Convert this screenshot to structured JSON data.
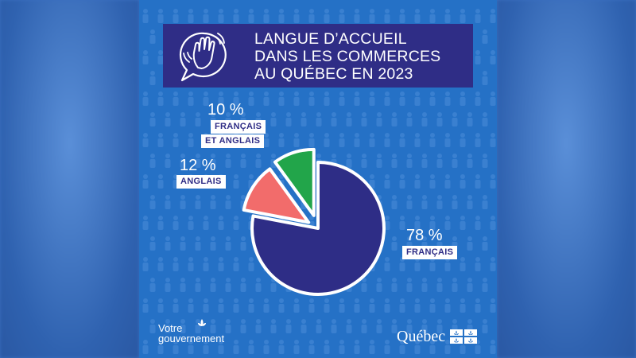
{
  "title_lines": [
    "LANGUE D’ACCUEIL",
    "DANS LES COMMERCES",
    "AU QUÉBEC EN 2023"
  ],
  "icon": "waving-hand-speech-bubble-icon",
  "colors": {
    "background": "#2571c6",
    "header": "#2f2d86",
    "francais": "#2e2d86",
    "anglais": "#f26c6b",
    "francais_et_anglais": "#22a54a"
  },
  "chart_data": {
    "type": "pie",
    "title": "LANGUE D’ACCUEIL DANS LES COMMERCES AU QUÉBEC EN 2023",
    "slices": [
      {
        "label_lines": [
          "FRANÇAIS"
        ],
        "value": 78,
        "value_label": "78 %",
        "color": "#2e2d86"
      },
      {
        "label_lines": [
          "ANGLAIS"
        ],
        "value": 12,
        "value_label": "12 %",
        "color": "#f26c6b"
      },
      {
        "label_lines": [
          "FRANÇAIS",
          "ET ANGLAIS"
        ],
        "value": 10,
        "value_label": "10 %",
        "color": "#22a54a"
      }
    ],
    "unit": "%"
  },
  "footer": {
    "left_line1": "Votre",
    "left_line2": "gouvernement",
    "left_logo": "fleur-de-lis-icon",
    "right_text": "Québec",
    "right_logo": "quebec-flag-icon"
  }
}
